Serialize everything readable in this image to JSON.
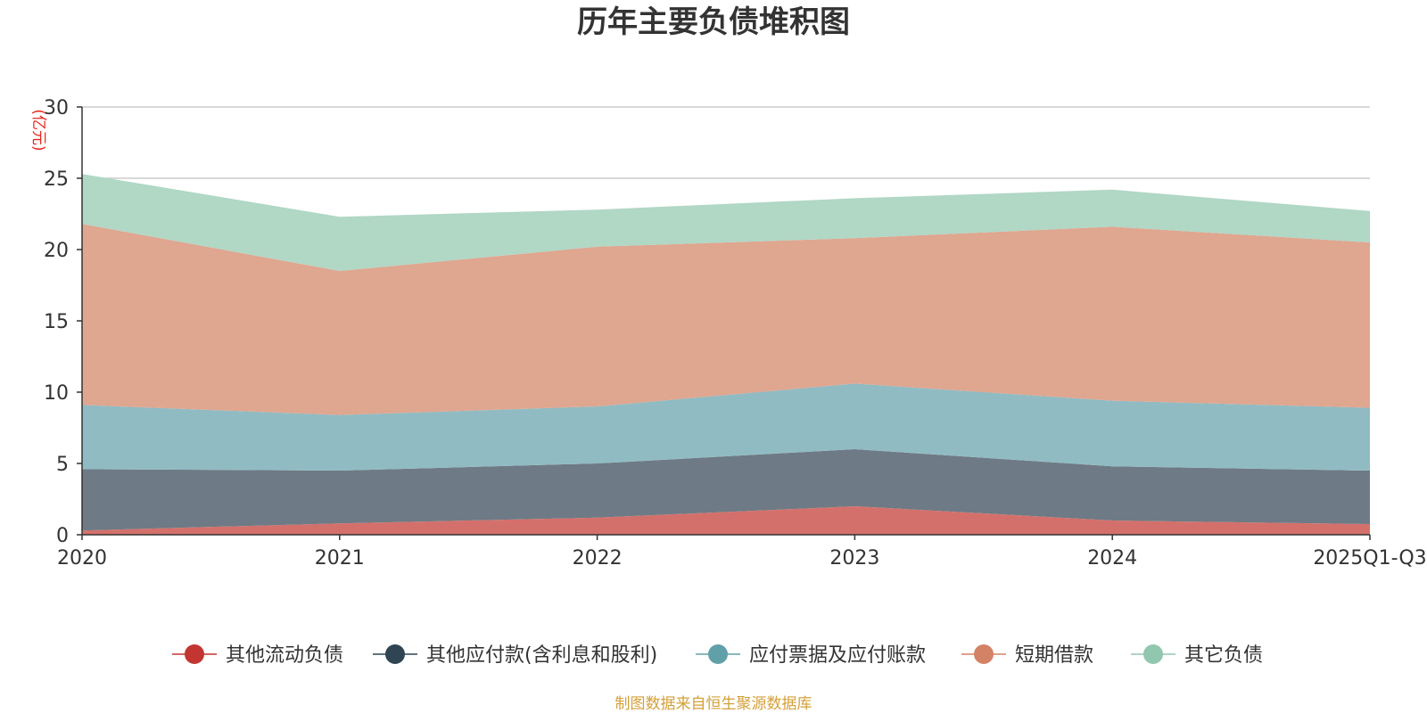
{
  "chart_data": {
    "type": "area",
    "stacked": true,
    "title": "历年主要负债堆积图",
    "unit_label": "(亿元)",
    "source": "制图数据来自恒生聚源数据库",
    "categories": [
      "2020",
      "2021",
      "2022",
      "2023",
      "2024",
      "2025Q1-Q3"
    ],
    "ylim": [
      0,
      30
    ],
    "yticks": [
      0,
      5,
      10,
      15,
      20,
      25,
      30
    ],
    "grid": true,
    "legend_position": "bottom",
    "series": [
      {
        "name": "其他流动负债",
        "color": "#c23531",
        "fill": "#d4706b",
        "values": [
          0.3,
          0.8,
          1.2,
          2.0,
          1.0,
          0.75
        ]
      },
      {
        "name": "其他应付款(含利息和股利)",
        "color": "#2f4554",
        "fill": "#6e7a85",
        "values": [
          4.3,
          3.7,
          3.8,
          4.0,
          3.8,
          3.75
        ]
      },
      {
        "name": "应付票据及应付账款",
        "color": "#61a0a8",
        "fill": "#91bbc2",
        "values": [
          4.5,
          3.9,
          4.0,
          4.6,
          4.6,
          4.4
        ]
      },
      {
        "name": "短期借款",
        "color": "#d48265",
        "fill": "#dfa690",
        "values": [
          12.7,
          10.1,
          11.2,
          10.2,
          12.2,
          11.6
        ]
      },
      {
        "name": "其它负债",
        "color": "#91c7ae",
        "fill": "#b1d7c5",
        "values": [
          3.5,
          3.8,
          2.6,
          2.8,
          2.6,
          2.2
        ]
      }
    ]
  }
}
